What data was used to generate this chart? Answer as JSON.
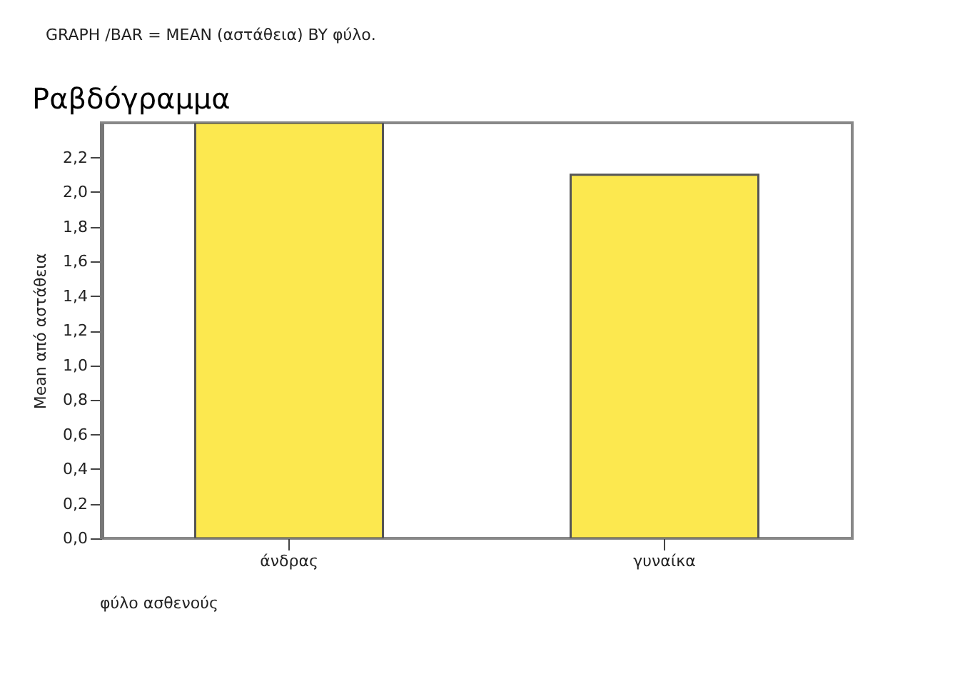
{
  "chart_data": {
    "type": "bar",
    "title": "Ραβδόγραμμα",
    "annotations": [
      "GRAPH /BAR = MEAN (αστάθεια) BY φύλο."
    ],
    "xlabel": "φύλο ασθενούς",
    "ylabel": "Mean από αστάθεια",
    "categories": [
      "άνδρας",
      "γυναίκα"
    ],
    "values": [
      2.4,
      2.1
    ],
    "color": "#fce84f",
    "ylim": [
      0,
      2.4
    ],
    "yticks": [
      {
        "value": 0,
        "label": "0,0"
      },
      {
        "value": 0.2,
        "label": "0,2"
      },
      {
        "value": 0.4,
        "label": "0,4"
      },
      {
        "value": 0.6,
        "label": "0,6"
      },
      {
        "value": 0.8,
        "label": "0,8"
      },
      {
        "value": 1.0,
        "label": "1,0"
      },
      {
        "value": 1.2,
        "label": "1,2"
      },
      {
        "value": 1.4,
        "label": "1,4"
      },
      {
        "value": 1.6,
        "label": "1,6"
      },
      {
        "value": 1.8,
        "label": "1,8"
      },
      {
        "value": 2.0,
        "label": "2,0"
      },
      {
        "value": 2.2,
        "label": "2,2"
      }
    ],
    "grid": false
  }
}
